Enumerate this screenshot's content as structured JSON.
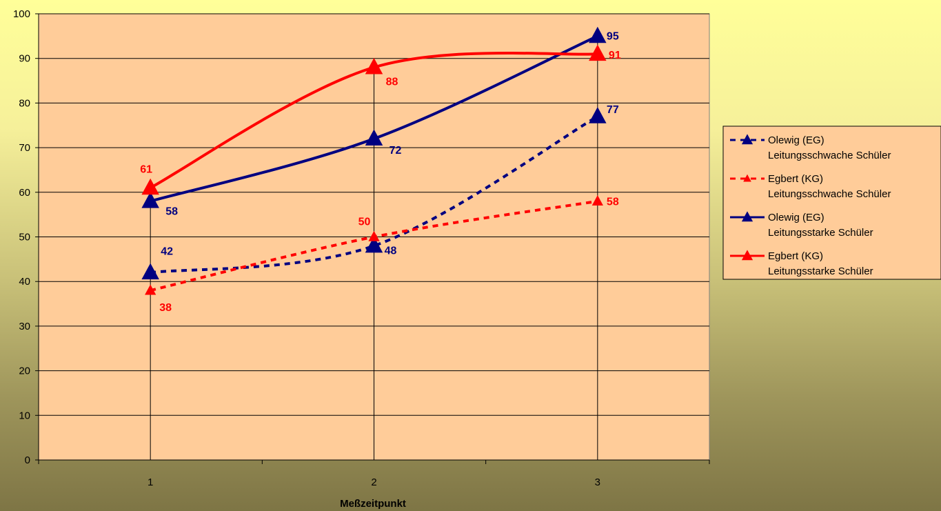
{
  "chart_data": {
    "type": "line",
    "title": "",
    "xlabel": "Meßzeitpunkt",
    "ylabel": "",
    "x": [
      1,
      2,
      3
    ],
    "xlim": [
      0.5,
      3.5
    ],
    "ylim": [
      0,
      100
    ],
    "yticks": [
      0,
      10,
      20,
      30,
      40,
      50,
      60,
      70,
      80,
      90,
      100
    ],
    "xticks": [
      1,
      2,
      3
    ],
    "grid": "horizontal",
    "legend_position": "right",
    "plot_background": "#FFCC99",
    "series": [
      {
        "name": "Olewig (EG) Leitungsschwache Schüler",
        "legend_lines": [
          "Olewig (EG)",
          "Leitungsschwache Schüler"
        ],
        "values": [
          42,
          48,
          77
        ],
        "color": "#000080",
        "style": "dashed",
        "marker": "triangle"
      },
      {
        "name": "Egbert (KG) Leitungsschwache Schüler",
        "legend_lines": [
          "Egbert (KG)",
          "Leitungsschwache Schüler"
        ],
        "values": [
          38,
          50,
          58
        ],
        "color": "#FF0000",
        "style": "dashed",
        "marker": "triangle"
      },
      {
        "name": "Olewig (EG) Leitungsstarke Schüler",
        "legend_lines": [
          "Olewig (EG)",
          "Leitungsstarke Schüler"
        ],
        "values": [
          58,
          72,
          95
        ],
        "color": "#000080",
        "style": "solid",
        "marker": "triangle"
      },
      {
        "name": "Egbert (KG) Leitungsstarke Schüler",
        "legend_lines": [
          "Egbert (KG)",
          "Leitungsstarke Schüler"
        ],
        "values": [
          61,
          88,
          91
        ],
        "color": "#FF0000",
        "style": "solid",
        "marker": "triangle"
      }
    ]
  }
}
